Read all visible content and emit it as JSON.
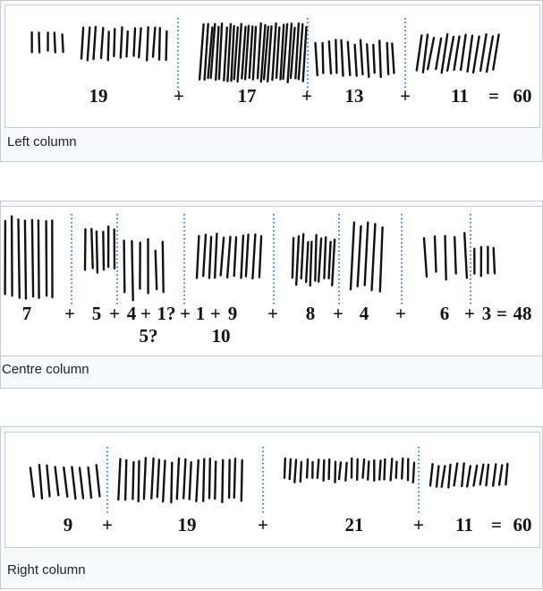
{
  "colors": {
    "tally": "#111111",
    "divider": "#3a7ee8",
    "panel_bg": "#f8f9fa",
    "border": "#c8ccd1"
  },
  "panels": [
    {
      "caption": "Left column",
      "labels": [
        {
          "text": "19"
        },
        {
          "text": "+"
        },
        {
          "text": "17"
        },
        {
          "text": "+"
        },
        {
          "text": "13"
        },
        {
          "text": "+"
        },
        {
          "text": "11"
        },
        {
          "text": "="
        },
        {
          "text": "60"
        }
      ]
    },
    {
      "caption": "Centre column",
      "labels": [
        {
          "text": "7"
        },
        {
          "text": "+"
        },
        {
          "text": "5"
        },
        {
          "text": "+"
        },
        {
          "text": "4"
        },
        {
          "text": "+"
        },
        {
          "text": "1?"
        },
        {
          "text": "+"
        },
        {
          "text": "1"
        },
        {
          "text": "+"
        },
        {
          "text": "9"
        },
        {
          "text": "+"
        },
        {
          "text": "8"
        },
        {
          "text": "+"
        },
        {
          "text": "4"
        },
        {
          "text": "+"
        },
        {
          "text": "6"
        },
        {
          "text": "+"
        },
        {
          "text": "3"
        },
        {
          "text": "="
        },
        {
          "text": "48"
        },
        {
          "text": "5?"
        },
        {
          "text": "10"
        }
      ]
    },
    {
      "caption": "Right column",
      "labels": [
        {
          "text": "9"
        },
        {
          "text": "+"
        },
        {
          "text": "19"
        },
        {
          "text": "+"
        },
        {
          "text": "21"
        },
        {
          "text": "+"
        },
        {
          "text": "11"
        },
        {
          "text": "="
        },
        {
          "text": "60"
        }
      ]
    }
  ]
}
